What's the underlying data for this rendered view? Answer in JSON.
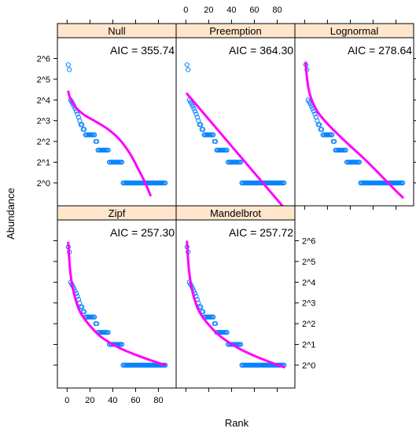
{
  "chart_data": {
    "type": "scatter",
    "layout": "lattice 3 columns x 2 rows",
    "xlabel": "Rank",
    "ylabel": "Abundance",
    "xlim": [
      -3,
      90
    ],
    "ylim": [
      -0.8,
      6.7
    ],
    "y_scale": "log2",
    "x_ticks": [
      0,
      20,
      40,
      60,
      80
    ],
    "x_tick_labels": [
      "0",
      "20",
      "40",
      "60",
      "80"
    ],
    "y_ticks": [
      0,
      1,
      2,
      3,
      4,
      5,
      6
    ],
    "y_tick_labels": [
      "2^0",
      "2^1",
      "2^2",
      "2^3",
      "2^4",
      "2^5",
      "2^6"
    ],
    "point_color": "#0080ff",
    "line_color": "#ff00ff",
    "strip_color": "#ffe5cc",
    "observed_log2_abundance_by_rank": [
      5.7,
      5.46,
      4.0,
      3.91,
      3.81,
      3.7,
      3.58,
      3.46,
      3.32,
      3.17,
      3.0,
      2.81,
      2.81,
      2.58,
      2.58,
      2.32,
      2.32,
      2.32,
      2.32,
      2.32,
      2.32,
      2.32,
      2.32,
      2.32,
      2.0,
      2.0,
      1.58,
      1.58,
      1.58,
      1.58,
      1.58,
      1.58,
      1.58,
      1.58,
      1.58,
      1.58,
      1.0,
      1.0,
      1.0,
      1.0,
      1.0,
      1.0,
      1.0,
      1.0,
      1.0,
      1.0,
      1.0,
      1.0,
      0,
      0,
      0,
      0,
      0,
      0,
      0,
      0,
      0,
      0,
      0,
      0,
      0,
      0,
      0,
      0,
      0,
      0,
      0,
      0,
      0,
      0,
      0,
      0,
      0,
      0,
      0,
      0,
      0,
      0,
      0,
      0,
      0,
      0,
      0,
      0,
      0,
      0
    ],
    "panels": [
      {
        "name": "Null",
        "aic": "AIC = 355.74",
        "fit_log2": {
          "x": [
            1,
            3,
            8,
            15,
            25,
            35,
            45,
            55,
            62,
            68,
            73
          ],
          "y": [
            4.4,
            4.05,
            3.62,
            3.28,
            2.96,
            2.62,
            2.15,
            1.42,
            0.7,
            0.05,
            -0.6
          ]
        }
      },
      {
        "name": "Preemption",
        "aic": "AIC = 364.30",
        "fit_log2": {
          "x": [
            1,
            86
          ],
          "y": [
            4.3,
            -1.2
          ]
        }
      },
      {
        "name": "Lognormal",
        "aic": "AIC = 278.64",
        "fit_log2": {
          "x": [
            1,
            2,
            4,
            7,
            12,
            20,
            30,
            40,
            50,
            60,
            70,
            80,
            86
          ],
          "y": [
            5.8,
            5.1,
            4.4,
            3.9,
            3.38,
            2.85,
            2.3,
            1.78,
            1.28,
            0.74,
            0.18,
            -0.38,
            -0.7
          ]
        }
      },
      {
        "name": "Zipf",
        "aic": "AIC = 257.30",
        "fit_log2": {
          "x": [
            1,
            2,
            3,
            5,
            8,
            12,
            20,
            30,
            45,
            60,
            75,
            86
          ],
          "y": [
            5.9,
            5.0,
            4.4,
            3.7,
            3.05,
            2.5,
            1.9,
            1.35,
            0.85,
            0.5,
            0.2,
            0.0
          ]
        }
      },
      {
        "name": "Mandelbrot",
        "aic": "AIC = 257.72",
        "fit_log2": {
          "x": [
            1,
            2,
            3,
            5,
            8,
            12,
            20,
            30,
            45,
            60,
            75,
            86
          ],
          "y": [
            5.95,
            5.05,
            4.45,
            3.75,
            3.1,
            2.55,
            1.95,
            1.4,
            0.85,
            0.45,
            0.12,
            -0.1
          ]
        }
      }
    ]
  }
}
